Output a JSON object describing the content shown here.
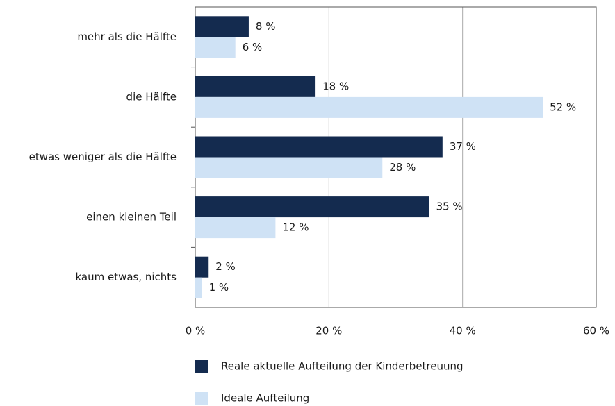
{
  "chart_data": {
    "type": "hbar",
    "categories": [
      "mehr als die Hälfte",
      "die Hälfte",
      "etwas weniger als die Hälfte",
      "einen kleinen Teil",
      "kaum etwas, nichts"
    ],
    "series": [
      {
        "name": "Reale aktuelle Aufteilung der Kinderbetreuung",
        "color": "#142b4f",
        "values": [
          8,
          18,
          37,
          35,
          2
        ],
        "value_labels": [
          "8 %",
          "18 %",
          "37 %",
          "35 %",
          "2 %"
        ]
      },
      {
        "name": "Ideale Aufteilung",
        "color": "#cfe2f5",
        "values": [
          6,
          52,
          28,
          12,
          1
        ],
        "value_labels": [
          "6 %",
          "52 %",
          "28 %",
          "12 %",
          "1 %"
        ]
      }
    ],
    "xlim": [
      0,
      60
    ],
    "xticks": [
      {
        "value": 0,
        "label": "0 %"
      },
      {
        "value": 20,
        "label": "20 %"
      },
      {
        "value": 40,
        "label": "40 %"
      },
      {
        "value": 60,
        "label": "60 %"
      }
    ],
    "grid": true
  }
}
